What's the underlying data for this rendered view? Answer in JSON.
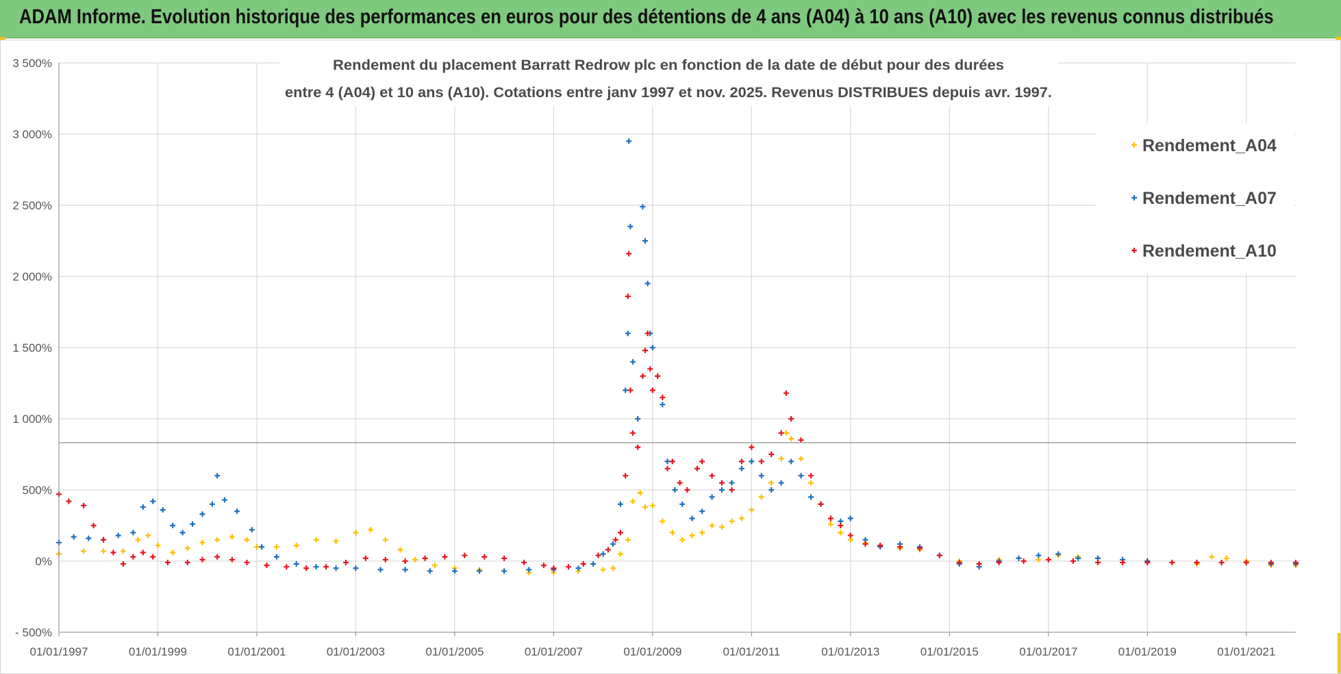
{
  "header": {
    "title": "ADAM Informe. Evolution historique des performances en euros pour des détentions de 4 ans (A04) à 10 ans (A10) avec les revenus connus distribués"
  },
  "chart_data": {
    "type": "scatter",
    "subtitle_lines": [
      "Rendement du placement Barratt Redrow plc en fonction de la date de début pour des durées",
      "entre 4 (A04) et 10 ans (A10).  Cotations entre janv 1997 et nov. 2025. Revenus DISTRIBUES depuis avr. 1997."
    ],
    "x_axis": {
      "range": [
        1997.0,
        2022.0
      ],
      "tick_years": [
        1997,
        1999,
        2001,
        2003,
        2005,
        2007,
        2009,
        2011,
        2013,
        2015,
        2017,
        2019,
        2021
      ],
      "tick_labels": [
        "01/01/1997",
        "01/01/1999",
        "01/01/2001",
        "01/01/2003",
        "01/01/2005",
        "01/01/2007",
        "01/01/2009",
        "01/01/2011",
        "01/01/2013",
        "01/01/2015",
        "01/01/2017",
        "01/01/2019",
        "01/01/2021"
      ]
    },
    "y_axis": {
      "range": [
        -500,
        3500
      ],
      "ticks": [
        -500,
        0,
        500,
        1000,
        1500,
        2000,
        2500,
        3000,
        3500
      ],
      "tick_labels": [
        "- 500%",
        "0%",
        "500%",
        "1 000%",
        "1 500%",
        "2 000%",
        "2 500%",
        "3 000%",
        "3 500%"
      ]
    },
    "series": [
      {
        "name": "Rendement_A04",
        "color": "#ffc000",
        "points": [
          [
            1997.0,
            50
          ],
          [
            1997.5,
            70
          ],
          [
            1997.9,
            70
          ],
          [
            1998.3,
            70
          ],
          [
            1998.6,
            150
          ],
          [
            1998.8,
            180
          ],
          [
            1999.0,
            110
          ],
          [
            1999.3,
            60
          ],
          [
            1999.6,
            90
          ],
          [
            1999.9,
            130
          ],
          [
            2000.2,
            150
          ],
          [
            2000.5,
            170
          ],
          [
            2000.8,
            150
          ],
          [
            2001.0,
            100
          ],
          [
            2001.4,
            100
          ],
          [
            2001.8,
            110
          ],
          [
            2002.2,
            150
          ],
          [
            2002.6,
            140
          ],
          [
            2003.0,
            200
          ],
          [
            2003.3,
            220
          ],
          [
            2003.6,
            150
          ],
          [
            2003.9,
            80
          ],
          [
            2004.2,
            10
          ],
          [
            2004.6,
            -30
          ],
          [
            2005.0,
            -50
          ],
          [
            2005.5,
            -60
          ],
          [
            2006.0,
            -70
          ],
          [
            2006.5,
            -80
          ],
          [
            2007.0,
            -80
          ],
          [
            2007.5,
            -70
          ],
          [
            2008.0,
            -60
          ],
          [
            2008.2,
            -50
          ],
          [
            2008.35,
            50
          ],
          [
            2008.5,
            150
          ],
          [
            2008.6,
            420
          ],
          [
            2008.75,
            480
          ],
          [
            2008.85,
            380
          ],
          [
            2009.0,
            390
          ],
          [
            2009.2,
            280
          ],
          [
            2009.4,
            200
          ],
          [
            2009.6,
            150
          ],
          [
            2009.8,
            180
          ],
          [
            2010.0,
            200
          ],
          [
            2010.2,
            250
          ],
          [
            2010.4,
            240
          ],
          [
            2010.6,
            280
          ],
          [
            2010.8,
            300
          ],
          [
            2011.0,
            360
          ],
          [
            2011.2,
            450
          ],
          [
            2011.4,
            550
          ],
          [
            2011.6,
            720
          ],
          [
            2011.7,
            900
          ],
          [
            2011.8,
            860
          ],
          [
            2012.0,
            720
          ],
          [
            2012.2,
            550
          ],
          [
            2012.4,
            400
          ],
          [
            2012.6,
            260
          ],
          [
            2012.8,
            200
          ],
          [
            2013.0,
            150
          ],
          [
            2013.3,
            130
          ],
          [
            2013.6,
            110
          ],
          [
            2014.0,
            90
          ],
          [
            2014.4,
            80
          ],
          [
            2014.8,
            40
          ],
          [
            2015.2,
            0
          ],
          [
            2015.6,
            -20
          ],
          [
            2016.0,
            10
          ],
          [
            2016.4,
            20
          ],
          [
            2016.8,
            10
          ],
          [
            2017.2,
            40
          ],
          [
            2017.6,
            30
          ],
          [
            2018.0,
            20
          ],
          [
            2018.5,
            10
          ],
          [
            2019.0,
            0
          ],
          [
            2019.5,
            -10
          ],
          [
            2020.0,
            -20
          ],
          [
            2020.3,
            30
          ],
          [
            2020.6,
            20
          ],
          [
            2021.0,
            0
          ],
          [
            2021.5,
            -30
          ],
          [
            2022.0,
            -30
          ]
        ]
      },
      {
        "name": "Rendement_A07",
        "color": "#1f6fbf",
        "points": [
          [
            1997.0,
            130
          ],
          [
            1997.3,
            170
          ],
          [
            1997.6,
            160
          ],
          [
            1997.9,
            150
          ],
          [
            1998.2,
            180
          ],
          [
            1998.5,
            200
          ],
          [
            1998.7,
            380
          ],
          [
            1998.9,
            420
          ],
          [
            1999.1,
            360
          ],
          [
            1999.3,
            250
          ],
          [
            1999.5,
            200
          ],
          [
            1999.7,
            260
          ],
          [
            1999.9,
            330
          ],
          [
            2000.1,
            400
          ],
          [
            2000.2,
            600
          ],
          [
            2000.35,
            430
          ],
          [
            2000.6,
            350
          ],
          [
            2000.9,
            220
          ],
          [
            2001.1,
            100
          ],
          [
            2001.4,
            30
          ],
          [
            2001.8,
            -20
          ],
          [
            2002.2,
            -40
          ],
          [
            2002.6,
            -50
          ],
          [
            2003.0,
            -50
          ],
          [
            2003.5,
            -60
          ],
          [
            2004.0,
            -60
          ],
          [
            2004.5,
            -70
          ],
          [
            2005.0,
            -70
          ],
          [
            2005.5,
            -70
          ],
          [
            2006.0,
            -70
          ],
          [
            2006.5,
            -60
          ],
          [
            2007.0,
            -60
          ],
          [
            2007.5,
            -50
          ],
          [
            2007.8,
            -20
          ],
          [
            2008.0,
            50
          ],
          [
            2008.2,
            120
          ],
          [
            2008.35,
            400
          ],
          [
            2008.45,
            1200
          ],
          [
            2008.5,
            1600
          ],
          [
            2008.52,
            2950
          ],
          [
            2008.55,
            2350
          ],
          [
            2008.6,
            1400
          ],
          [
            2008.7,
            1000
          ],
          [
            2008.8,
            2490
          ],
          [
            2008.85,
            2250
          ],
          [
            2008.9,
            1950
          ],
          [
            2008.95,
            1600
          ],
          [
            2009.0,
            1500
          ],
          [
            2009.1,
            1300
          ],
          [
            2009.2,
            1100
          ],
          [
            2009.3,
            700
          ],
          [
            2009.45,
            500
          ],
          [
            2009.6,
            400
          ],
          [
            2009.8,
            300
          ],
          [
            2010.0,
            350
          ],
          [
            2010.2,
            450
          ],
          [
            2010.4,
            500
          ],
          [
            2010.6,
            550
          ],
          [
            2010.8,
            650
          ],
          [
            2011.0,
            700
          ],
          [
            2011.2,
            600
          ],
          [
            2011.4,
            500
          ],
          [
            2011.6,
            550
          ],
          [
            2011.8,
            700
          ],
          [
            2012.0,
            600
          ],
          [
            2012.2,
            450
          ],
          [
            2012.4,
            400
          ],
          [
            2012.6,
            300
          ],
          [
            2012.8,
            280
          ],
          [
            2013.0,
            300
          ],
          [
            2013.3,
            150
          ],
          [
            2013.6,
            100
          ],
          [
            2014.0,
            120
          ],
          [
            2014.4,
            100
          ],
          [
            2014.8,
            40
          ],
          [
            2015.2,
            -20
          ],
          [
            2015.6,
            -40
          ],
          [
            2016.0,
            0
          ],
          [
            2016.4,
            20
          ],
          [
            2016.8,
            40
          ],
          [
            2017.2,
            50
          ],
          [
            2017.6,
            20
          ],
          [
            2018.0,
            20
          ],
          [
            2018.5,
            10
          ],
          [
            2019.0,
            0
          ],
          [
            2019.5,
            -10
          ],
          [
            2020.0,
            -10
          ],
          [
            2020.5,
            -10
          ],
          [
            2021.0,
            -10
          ],
          [
            2021.5,
            -20
          ],
          [
            2022.0,
            -20
          ]
        ]
      },
      {
        "name": "Rendement_A10",
        "color": "#e8141c",
        "points": [
          [
            1997.0,
            470
          ],
          [
            1997.2,
            420
          ],
          [
            1997.5,
            390
          ],
          [
            1997.7,
            250
          ],
          [
            1997.9,
            150
          ],
          [
            1998.1,
            60
          ],
          [
            1998.3,
            -20
          ],
          [
            1998.5,
            30
          ],
          [
            1998.7,
            60
          ],
          [
            1998.9,
            30
          ],
          [
            1999.2,
            -10
          ],
          [
            1999.6,
            -10
          ],
          [
            1999.9,
            10
          ],
          [
            2000.2,
            30
          ],
          [
            2000.5,
            10
          ],
          [
            2000.8,
            -10
          ],
          [
            2001.2,
            -30
          ],
          [
            2001.6,
            -40
          ],
          [
            2002.0,
            -50
          ],
          [
            2002.4,
            -40
          ],
          [
            2002.8,
            -10
          ],
          [
            2003.2,
            20
          ],
          [
            2003.6,
            10
          ],
          [
            2004.0,
            0
          ],
          [
            2004.4,
            20
          ],
          [
            2004.8,
            30
          ],
          [
            2005.2,
            40
          ],
          [
            2005.6,
            30
          ],
          [
            2006.0,
            20
          ],
          [
            2006.4,
            -10
          ],
          [
            2006.8,
            -30
          ],
          [
            2007.0,
            -50
          ],
          [
            2007.3,
            -40
          ],
          [
            2007.6,
            -20
          ],
          [
            2007.9,
            40
          ],
          [
            2008.1,
            80
          ],
          [
            2008.25,
            150
          ],
          [
            2008.35,
            200
          ],
          [
            2008.45,
            600
          ],
          [
            2008.5,
            1860
          ],
          [
            2008.52,
            2160
          ],
          [
            2008.55,
            1200
          ],
          [
            2008.6,
            900
          ],
          [
            2008.7,
            800
          ],
          [
            2008.8,
            1300
          ],
          [
            2008.85,
            1480
          ],
          [
            2008.9,
            1600
          ],
          [
            2008.95,
            1350
          ],
          [
            2009.0,
            1200
          ],
          [
            2009.1,
            1300
          ],
          [
            2009.2,
            1150
          ],
          [
            2009.3,
            650
          ],
          [
            2009.4,
            700
          ],
          [
            2009.55,
            550
          ],
          [
            2009.7,
            500
          ],
          [
            2009.9,
            650
          ],
          [
            2010.0,
            700
          ],
          [
            2010.2,
            600
          ],
          [
            2010.4,
            550
          ],
          [
            2010.6,
            500
          ],
          [
            2010.8,
            700
          ],
          [
            2011.0,
            800
          ],
          [
            2011.2,
            700
          ],
          [
            2011.4,
            750
          ],
          [
            2011.6,
            900
          ],
          [
            2011.7,
            1180
          ],
          [
            2011.8,
            1000
          ],
          [
            2012.0,
            850
          ],
          [
            2012.2,
            600
          ],
          [
            2012.4,
            400
          ],
          [
            2012.6,
            300
          ],
          [
            2012.8,
            250
          ],
          [
            2013.0,
            180
          ],
          [
            2013.3,
            120
          ],
          [
            2013.6,
            110
          ],
          [
            2014.0,
            100
          ],
          [
            2014.4,
            90
          ],
          [
            2014.8,
            40
          ],
          [
            2015.2,
            -10
          ],
          [
            2015.6,
            -20
          ],
          [
            2016.0,
            -10
          ],
          [
            2016.5,
            0
          ],
          [
            2017.0,
            10
          ],
          [
            2017.5,
            0
          ],
          [
            2018.0,
            -10
          ],
          [
            2018.5,
            -10
          ],
          [
            2019.0,
            -10
          ],
          [
            2019.5,
            -10
          ],
          [
            2020.0,
            -10
          ],
          [
            2020.5,
            -10
          ],
          [
            2021.0,
            -10
          ],
          [
            2021.5,
            -10
          ],
          [
            2022.0,
            -10
          ]
        ]
      }
    ],
    "legend_position": "top-right"
  }
}
